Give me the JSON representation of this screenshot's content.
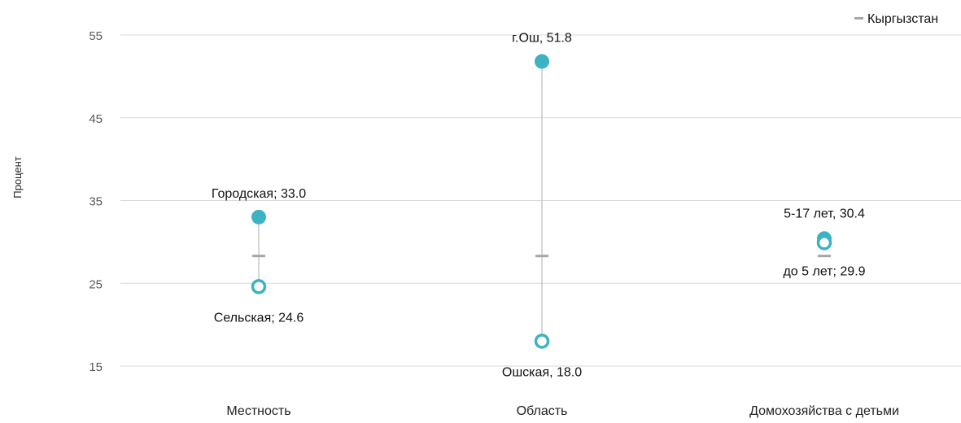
{
  "chart_data": {
    "type": "dot-range",
    "ylabel": "Процент",
    "ylim": [
      15,
      55
    ],
    "yticks": [
      15,
      25,
      35,
      45,
      55
    ],
    "grid": true,
    "legend": {
      "position": "top-right",
      "entries": [
        {
          "name": "Кыргызстан",
          "marker": "dash",
          "color": "#a6a6a6"
        }
      ]
    },
    "reference": {
      "name": "Кыргызстан",
      "value": 28.3
    },
    "colors": {
      "filled_marker": "#3bb3c3",
      "hollow_marker": "#3bb3c3",
      "range_line": "#c8c8c8",
      "reference_marker": "#a6a6a6",
      "grid": "#d9d9d9"
    },
    "categories": [
      "Местность",
      "Область",
      "Домохозяйства с детьми"
    ],
    "groups": [
      {
        "category": "Местность",
        "high": {
          "label": "Городская",
          "value": 33.0,
          "text": "Городская; 33.0"
        },
        "low": {
          "label": "Сельская",
          "value": 24.6,
          "text": "Сельская; 24.6"
        }
      },
      {
        "category": "Область",
        "high": {
          "label": "г.Ош",
          "value": 51.8,
          "text": "г.Ош, 51.8"
        },
        "low": {
          "label": "Ошская",
          "value": 18.0,
          "text": "Ошская, 18.0"
        }
      },
      {
        "category": "Домохозяйства с детьми",
        "high": {
          "label": "5-17 лет",
          "value": 30.4,
          "text": "5-17 лет, 30.4"
        },
        "low": {
          "label": "до 5 лет",
          "value": 29.9,
          "text": "до 5 лет; 29.9"
        }
      }
    ]
  }
}
